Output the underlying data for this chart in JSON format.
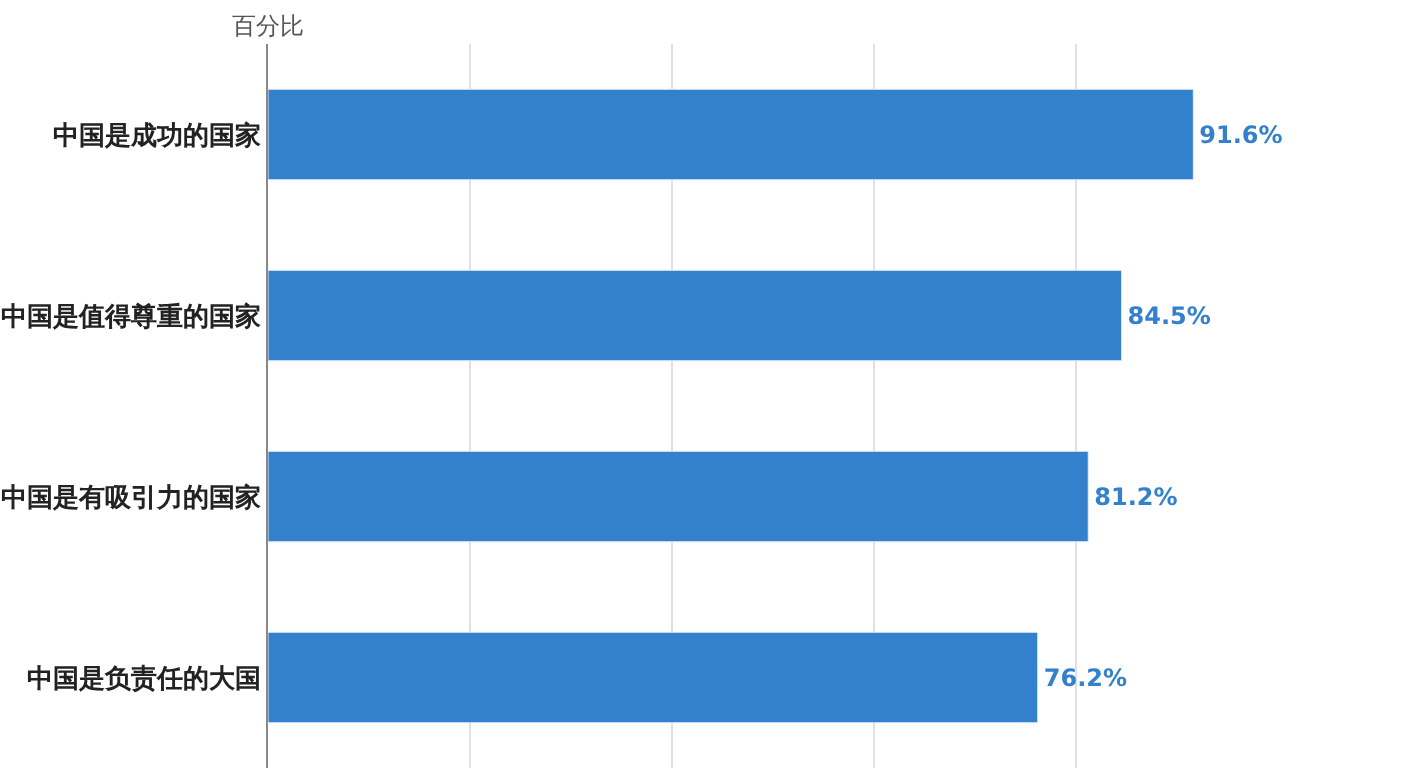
{
  "chart_data": {
    "type": "bar",
    "orientation": "horizontal",
    "ylabel": "百分比",
    "categories": [
      "中国是成功的国家",
      "中国是值得尊重的国家",
      "中国是有吸引力的国家",
      "中国是负责任的大国"
    ],
    "values": [
      91.6,
      84.5,
      81.2,
      76.2
    ],
    "value_labels": [
      "91.6%",
      "84.5%",
      "81.2%",
      "76.2%"
    ],
    "color": "#3380cc",
    "grid": "x",
    "tick_labels": "y",
    "legend": false
  }
}
